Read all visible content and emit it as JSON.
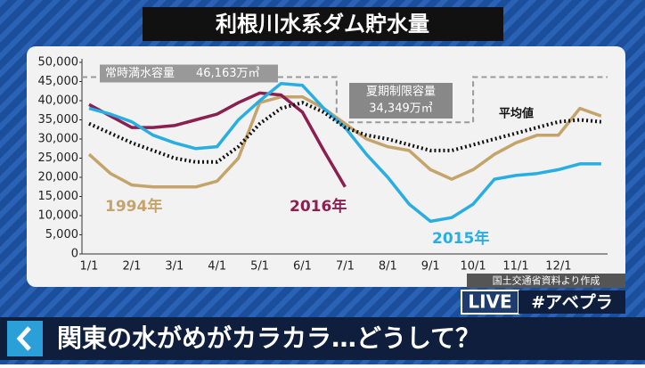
{
  "chart_data": {
    "type": "line",
    "title": "利根川水系ダム貯水量",
    "categories": [
      "1/1",
      null,
      "2/1",
      null,
      "3/1",
      null,
      "4/1",
      null,
      "5/1",
      null,
      "6/1",
      null,
      "7/1",
      null,
      "8/1",
      null,
      "9/1",
      null,
      "10/1",
      null,
      "11/1",
      null,
      "12/1",
      null,
      null
    ],
    "series": [
      {
        "name": "1994年",
        "color": "#c4a46a",
        "values": [
          26000,
          21000,
          18000,
          17500,
          17500,
          17500,
          19000,
          25000,
          39500,
          41000,
          41000,
          38000,
          34000,
          30000,
          28000,
          27000,
          22000,
          19500,
          22000,
          26000,
          29000,
          31000,
          31000,
          38000,
          36000
        ]
      },
      {
        "name": "2016年",
        "color": "#8b1f50",
        "values": [
          39000,
          36000,
          33000,
          33000,
          33500,
          35000,
          36500,
          39500,
          42000,
          41500,
          37000,
          27000,
          17500,
          null,
          null,
          null,
          null,
          null,
          null,
          null,
          null,
          null,
          null,
          null,
          null
        ]
      },
      {
        "name": "2015年",
        "color": "#29aee3",
        "values": [
          38000,
          36500,
          34500,
          31000,
          29000,
          27500,
          28000,
          35000,
          40000,
          44500,
          44000,
          38000,
          33000,
          26000,
          20000,
          13000,
          8500,
          9500,
          13000,
          19500,
          20500,
          21000,
          22000,
          23500,
          23500
        ]
      },
      {
        "name": "平均値",
        "color": "#111111",
        "values": [
          34000,
          31500,
          29000,
          27000,
          25000,
          24000,
          24000,
          28000,
          34000,
          38000,
          39500,
          37000,
          33000,
          31000,
          30000,
          28500,
          27000,
          27000,
          28500,
          30000,
          31500,
          33000,
          34500,
          35000,
          34500
        ]
      }
    ],
    "ylim": [
      0,
      50000
    ],
    "yticks": [
      0,
      {
        "value": 5000,
        "label": "5,000"
      },
      {
        "value": 10000,
        "label": "10,000"
      },
      {
        "value": 15000,
        "label": "15,000"
      },
      {
        "value": 20000,
        "label": "20,000"
      },
      {
        "value": 25000,
        "label": "25,000"
      },
      {
        "value": 30000,
        "label": "30,000"
      },
      {
        "value": 35000,
        "label": "35,000"
      },
      {
        "value": 40000,
        "label": "40,000"
      },
      {
        "value": 45000,
        "label": "45,000"
      },
      {
        "value": 50000,
        "label": "50,000"
      }
    ],
    "full_capacity": {
      "label": "常時満水容量",
      "value": 46163,
      "value_label": "46,163万㎥"
    },
    "summer_limit": {
      "label": "夏期制限容量",
      "value": 34349,
      "value_label": "34,349万㎥"
    }
  },
  "source": "国土交通省資料より作成",
  "live_badge": "LIVE",
  "hashtag": "#アベプラ",
  "caption": "関東の水がめがカラカラ…どうして？"
}
